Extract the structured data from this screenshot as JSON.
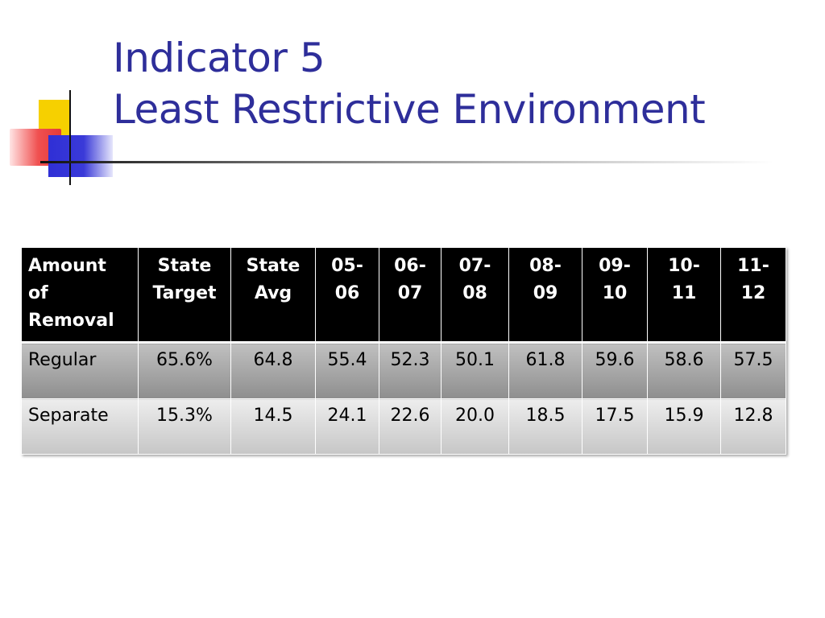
{
  "slide": {
    "title_line1": "Indicator 5",
    "title_line2": "Least Restrictive Environment",
    "title_color": "#2e2e9a"
  },
  "logo": {
    "colors": {
      "yellow": "#f6d000",
      "red": "#e43a3a",
      "blue": "#2f2fd6"
    }
  },
  "table": {
    "headers": [
      [
        "Amount",
        "of",
        "Removal"
      ],
      [
        "State",
        "Target"
      ],
      [
        "State",
        "Avg"
      ],
      [
        "05-",
        "06"
      ],
      [
        "06-",
        "07"
      ],
      [
        "07-",
        "08"
      ],
      [
        "08-",
        "09"
      ],
      [
        "09-",
        "10"
      ],
      [
        "10-",
        "11"
      ],
      [
        "11-",
        "12"
      ]
    ],
    "rows": [
      {
        "label": "Regular",
        "cells": [
          "65.6%",
          "64.8",
          "55.4",
          "52.3",
          "50.1",
          "61.8",
          "59.6",
          "58.6",
          "57.5"
        ]
      },
      {
        "label": "Separate",
        "cells": [
          "15.3%",
          "14.5",
          "24.1",
          "22.6",
          "20.0",
          "18.5",
          "17.5",
          "15.9",
          "12.8"
        ]
      }
    ]
  }
}
